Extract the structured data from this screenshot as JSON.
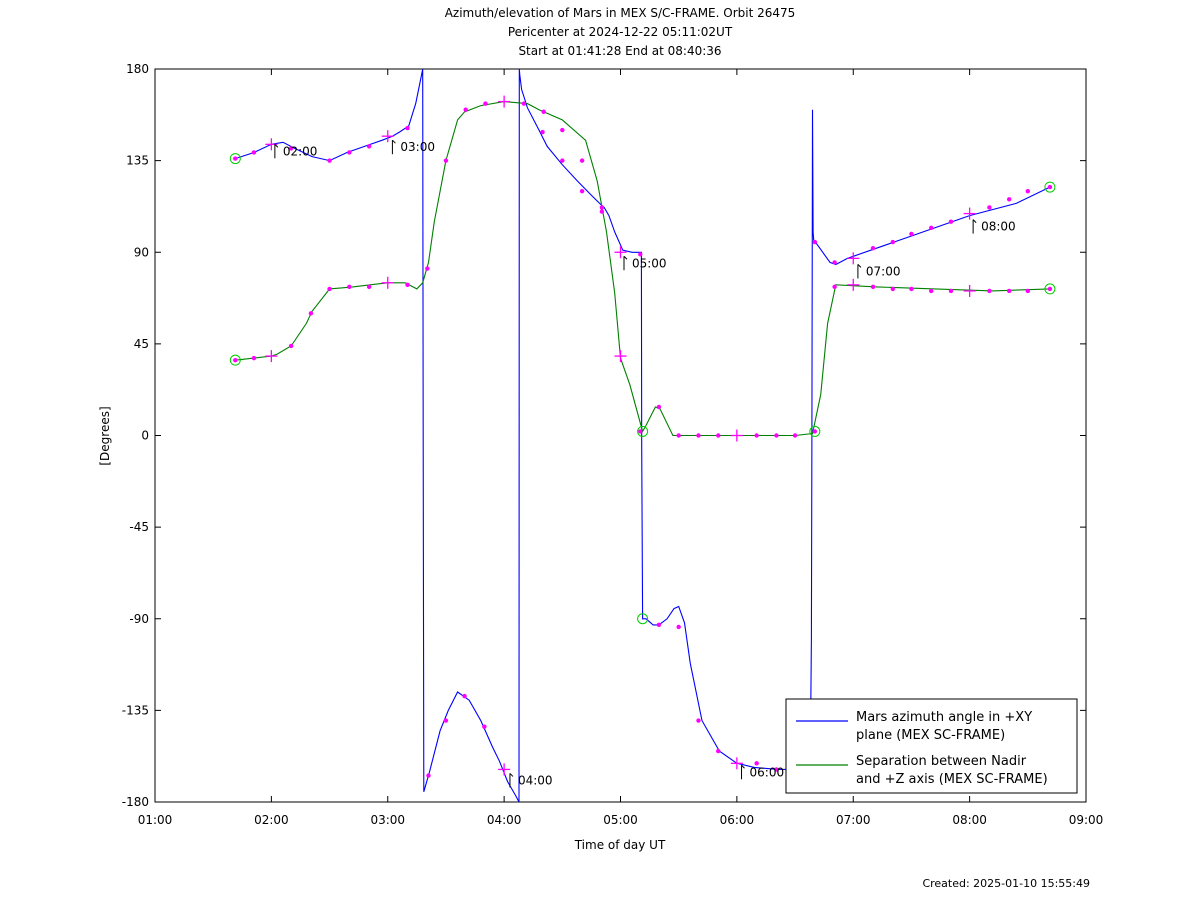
{
  "chart_data": {
    "type": "line",
    "title_lines": [
      "Azimuth/elevation of Mars in MEX S/C-FRAME.  Orbit 26475",
      "Pericenter at 2024-12-22 05:11:02UT",
      "Start at 01:41:28 End at 08:40:36"
    ],
    "xlabel": "Time of day UT",
    "ylabel": "[Degrees]",
    "xlim_hours": [
      1,
      9
    ],
    "ylim": [
      -180,
      180
    ],
    "x_ticks": [
      {
        "v": 1,
        "label": "01:00"
      },
      {
        "v": 2,
        "label": "02:00"
      },
      {
        "v": 3,
        "label": "03:00"
      },
      {
        "v": 4,
        "label": "04:00"
      },
      {
        "v": 5,
        "label": "05:00"
      },
      {
        "v": 6,
        "label": "06:00"
      },
      {
        "v": 7,
        "label": "07:00"
      },
      {
        "v": 8,
        "label": "08:00"
      },
      {
        "v": 9,
        "label": "09:00"
      }
    ],
    "y_ticks": [
      {
        "v": 180,
        "label": "180"
      },
      {
        "v": 135,
        "label": "135"
      },
      {
        "v": 90,
        "label": "90"
      },
      {
        "v": 45,
        "label": "45"
      },
      {
        "v": 0,
        "label": "0"
      },
      {
        "v": -45,
        "label": "-45"
      },
      {
        "v": -90,
        "label": "-90"
      },
      {
        "v": -135,
        "label": "-135"
      },
      {
        "v": -180,
        "label": "-180"
      }
    ],
    "legend": {
      "placement": "bottom-right",
      "entries": [
        {
          "color": "#0000ff",
          "lines": [
            "Mars azimuth angle in +XY",
            "plane (MEX SC-FRAME)"
          ]
        },
        {
          "color": "#008000",
          "lines": [
            "Separation between Nadir",
            "and +Z axis (MEX SC-FRAME)"
          ]
        }
      ]
    },
    "series": [
      {
        "color": "#0000ff",
        "x": [
          1.69,
          1.85,
          2.0,
          2.1,
          2.2,
          2.35,
          2.5,
          2.65,
          2.8,
          2.95,
          3.04,
          3.1,
          3.18,
          3.24,
          3.29,
          3.3,
          3.305,
          3.31,
          3.36,
          3.45,
          3.52,
          3.6,
          3.7,
          3.8,
          3.9,
          3.96,
          4.03,
          4.1,
          4.128,
          4.13,
          4.135,
          4.15,
          4.2,
          4.3,
          4.37,
          4.5,
          4.63,
          4.75,
          4.82,
          4.86,
          4.9,
          4.95,
          5.02,
          5.1,
          5.18,
          5.182,
          5.19,
          5.22,
          5.28,
          5.33,
          5.4,
          5.46,
          5.5,
          5.55,
          5.6,
          5.7,
          5.85,
          6.0,
          6.15,
          6.35,
          6.5,
          6.63,
          6.64,
          6.645,
          6.65,
          6.655,
          6.66,
          6.7,
          6.8,
          6.85,
          6.95,
          7.0,
          7.2,
          7.5,
          8.0,
          8.4,
          8.69
        ],
        "y": [
          136,
          139,
          143,
          144,
          141,
          137,
          135,
          139,
          142,
          145,
          147,
          149,
          152,
          163,
          177,
          180,
          -5,
          -175,
          -165,
          -145,
          -135,
          -126,
          -130,
          -140,
          -153,
          -160,
          -170,
          -177,
          -180,
          180,
          177,
          170,
          161,
          150,
          142,
          133,
          125,
          118,
          114,
          112,
          108,
          100,
          91,
          90,
          90,
          -5,
          -90,
          -90,
          -93,
          -93,
          -90,
          -85,
          -84,
          -92,
          -112,
          -140,
          -155,
          -161,
          -163,
          -164,
          -164,
          -164,
          -100,
          0,
          160,
          100,
          96,
          93,
          85,
          84,
          87,
          88,
          92,
          98,
          108,
          114,
          122
        ]
      },
      {
        "color": "#008000",
        "x": [
          1.69,
          1.85,
          2.0,
          2.05,
          2.17,
          2.3,
          2.35,
          2.5,
          2.7,
          2.85,
          3.0,
          3.15,
          3.25,
          3.3,
          3.35,
          3.4,
          3.5,
          3.6,
          3.66,
          3.8,
          4.0,
          4.2,
          4.3,
          4.5,
          4.7,
          4.8,
          4.88,
          4.95,
          5.0,
          5.08,
          5.19,
          5.22,
          5.3,
          5.34,
          5.45,
          5.6,
          5.85,
          6.2,
          6.5,
          6.65,
          6.72,
          6.78,
          6.85,
          7.2,
          7.7,
          8.2,
          8.69
        ],
        "y": [
          37,
          38,
          39,
          40,
          44,
          55,
          61,
          72,
          73,
          74,
          75,
          75,
          72,
          75,
          85,
          105,
          135,
          155,
          159,
          162,
          164,
          163,
          160,
          155,
          145,
          125,
          100,
          70,
          38,
          25,
          2,
          5,
          14,
          13,
          0,
          0,
          0,
          0,
          0,
          1,
          20,
          55,
          74,
          73,
          72,
          71,
          72
        ]
      }
    ],
    "markers": {
      "blue": {
        "dots": [
          [
            1.69,
            136
          ],
          [
            1.85,
            139
          ],
          [
            2.17,
            141
          ],
          [
            2.5,
            135
          ],
          [
            2.67,
            139
          ],
          [
            2.84,
            142
          ],
          [
            3.17,
            151
          ],
          [
            3.35,
            -167
          ],
          [
            3.5,
            -140
          ],
          [
            3.66,
            -128
          ],
          [
            3.83,
            -143
          ],
          [
            4.33,
            149
          ],
          [
            4.5,
            135
          ],
          [
            4.67,
            120
          ],
          [
            4.84,
            112
          ],
          [
            5.17,
            89
          ],
          [
            5.33,
            -93
          ],
          [
            5.5,
            -94
          ],
          [
            5.67,
            -140
          ],
          [
            5.84,
            -155
          ],
          [
            6.17,
            -161
          ],
          [
            6.34,
            -164
          ],
          [
            6.67,
            95
          ],
          [
            6.84,
            85
          ],
          [
            7.17,
            92
          ],
          [
            7.34,
            95
          ],
          [
            7.5,
            99
          ],
          [
            7.67,
            102
          ],
          [
            7.84,
            105
          ],
          [
            8.17,
            112
          ],
          [
            8.34,
            116
          ],
          [
            8.5,
            120
          ],
          [
            8.69,
            122
          ]
        ],
        "plus": [
          [
            2.0,
            143
          ],
          [
            3.0,
            147
          ],
          [
            4.0,
            -164
          ],
          [
            5.0,
            90
          ],
          [
            6.0,
            -161
          ],
          [
            7.0,
            87
          ],
          [
            8.0,
            109
          ]
        ],
        "circles": [
          [
            1.69,
            136
          ],
          [
            5.19,
            -90
          ],
          [
            8.69,
            122
          ]
        ]
      },
      "green": {
        "dots": [
          [
            1.69,
            37
          ],
          [
            1.85,
            38
          ],
          [
            2.17,
            44
          ],
          [
            2.34,
            60
          ],
          [
            2.5,
            72
          ],
          [
            2.67,
            73
          ],
          [
            2.84,
            73
          ],
          [
            3.17,
            74
          ],
          [
            3.34,
            82
          ],
          [
            3.5,
            135
          ],
          [
            3.67,
            160
          ],
          [
            3.84,
            163
          ],
          [
            4.17,
            163
          ],
          [
            4.34,
            159
          ],
          [
            4.5,
            150
          ],
          [
            4.67,
            135
          ],
          [
            4.84,
            110
          ],
          [
            5.17,
            2
          ],
          [
            5.33,
            14
          ],
          [
            5.5,
            0
          ],
          [
            5.67,
            0
          ],
          [
            5.84,
            0
          ],
          [
            6.17,
            0
          ],
          [
            6.34,
            0
          ],
          [
            6.5,
            0
          ],
          [
            6.67,
            2
          ],
          [
            6.84,
            73
          ],
          [
            7.17,
            73
          ],
          [
            7.34,
            72
          ],
          [
            7.5,
            72
          ],
          [
            7.67,
            71
          ],
          [
            7.84,
            71
          ],
          [
            8.17,
            71
          ],
          [
            8.34,
            71
          ],
          [
            8.5,
            71
          ],
          [
            8.69,
            72
          ]
        ],
        "plus": [
          [
            2.0,
            39
          ],
          [
            3.0,
            75
          ],
          [
            4.0,
            164
          ],
          [
            5.0,
            39
          ],
          [
            6.0,
            0
          ],
          [
            7.0,
            74
          ],
          [
            8.0,
            71
          ]
        ],
        "circles": [
          [
            1.69,
            37
          ],
          [
            5.19,
            2
          ],
          [
            6.67,
            2
          ],
          [
            8.69,
            72
          ]
        ]
      }
    },
    "time_annotations": [
      {
        "x": 2.03,
        "y": 145,
        "label": "02:00"
      },
      {
        "x": 3.04,
        "y": 147,
        "label": "03:00"
      },
      {
        "x": 4.05,
        "y": -164,
        "label": "04:00"
      },
      {
        "x": 5.03,
        "y": 90,
        "label": "05:00"
      },
      {
        "x": 6.04,
        "y": -160,
        "label": "06:00"
      },
      {
        "x": 7.04,
        "y": 86,
        "label": "07:00"
      },
      {
        "x": 8.03,
        "y": 108,
        "label": "08:00"
      }
    ]
  },
  "footer": {
    "created": "Created: 2025-01-10 15:55:49"
  }
}
